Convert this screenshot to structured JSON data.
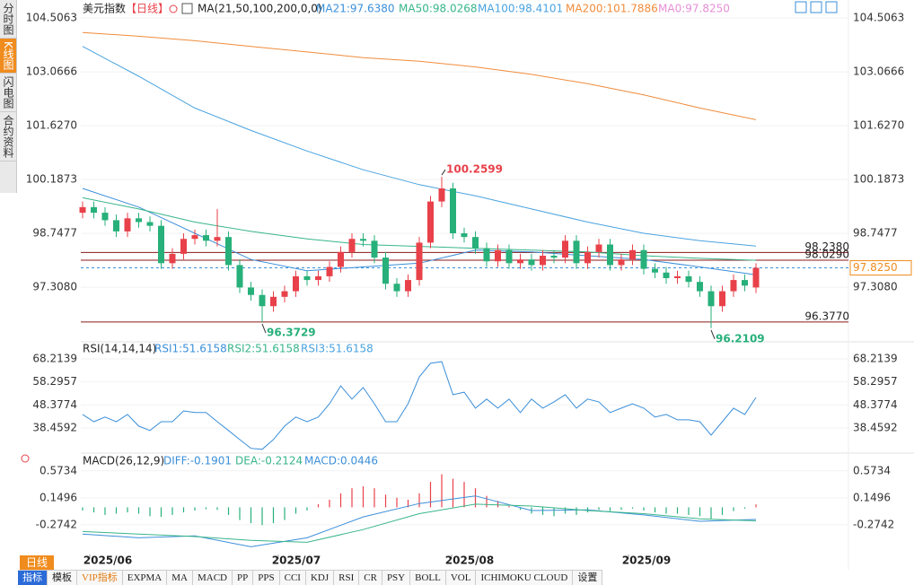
{
  "chart_data": [
    {
      "type": "candlestick",
      "title": "美元指数",
      "period": "【日线】",
      "indicator": "MA(21,50,100,200,0,0)",
      "up_color": "#e8414a",
      "down_color": "#27b07a",
      "open": [
        99.3,
        99.45,
        99.3,
        99.1,
        98.8,
        99.15,
        99.05,
        98.95,
        97.95,
        98.2,
        98.6,
        98.7,
        98.55,
        98.65,
        97.9,
        97.3,
        97.1,
        96.8,
        97.05,
        97.2,
        97.6,
        97.5,
        97.6,
        97.85,
        98.25,
        98.6,
        98.55,
        98.1,
        97.4,
        97.2,
        97.5,
        98.5,
        99.6,
        99.95,
        98.75,
        98.65,
        98.35,
        98.0,
        98.3,
        97.95,
        98.05,
        97.9,
        98.15,
        98.1,
        98.55,
        97.95,
        98.25,
        98.45,
        97.9,
        98.05,
        98.3,
        97.8,
        97.7,
        97.55,
        97.6,
        97.45,
        97.2,
        96.8,
        97.2,
        97.5,
        97.3
      ],
      "high": [
        99.6,
        99.6,
        99.45,
        99.25,
        99.3,
        99.3,
        99.2,
        99.1,
        98.35,
        98.75,
        98.85,
        98.85,
        99.4,
        98.8,
        98.05,
        97.45,
        97.25,
        97.2,
        97.35,
        97.75,
        97.75,
        97.75,
        98.0,
        98.4,
        98.75,
        98.75,
        98.7,
        98.25,
        97.55,
        97.65,
        98.65,
        99.75,
        100.2599,
        100.1,
        98.9,
        98.8,
        98.5,
        98.45,
        98.45,
        98.2,
        98.2,
        98.3,
        98.3,
        98.7,
        98.7,
        98.4,
        98.6,
        98.6,
        98.2,
        98.45,
        98.45,
        97.95,
        97.85,
        97.75,
        97.75,
        97.6,
        97.35,
        97.35,
        97.65,
        97.65,
        97.95
      ],
      "low": [
        99.15,
        99.15,
        98.95,
        98.65,
        98.65,
        98.9,
        98.8,
        97.8,
        97.8,
        98.05,
        98.45,
        98.4,
        98.4,
        97.75,
        97.15,
        96.95,
        96.3729,
        96.65,
        96.9,
        97.05,
        97.35,
        97.35,
        97.45,
        97.7,
        98.1,
        98.4,
        97.95,
        97.25,
        97.05,
        97.05,
        97.35,
        98.35,
        99.45,
        98.6,
        98.5,
        98.2,
        97.85,
        97.85,
        97.8,
        97.8,
        97.75,
        97.75,
        97.95,
        97.95,
        97.8,
        97.8,
        98.1,
        97.75,
        97.75,
        97.9,
        97.65,
        97.55,
        97.4,
        97.4,
        97.3,
        97.05,
        96.2109,
        96.65,
        97.05,
        97.2,
        97.15
      ],
      "close": [
        99.45,
        99.3,
        99.1,
        98.8,
        99.15,
        99.05,
        98.95,
        97.95,
        98.2,
        98.6,
        98.7,
        98.55,
        98.65,
        97.9,
        97.3,
        97.1,
        96.8,
        97.05,
        97.2,
        97.6,
        97.5,
        97.6,
        97.85,
        98.25,
        98.6,
        98.55,
        98.1,
        97.4,
        97.2,
        97.5,
        98.5,
        99.6,
        99.95,
        98.75,
        98.65,
        98.35,
        98.0,
        98.3,
        97.95,
        98.05,
        97.9,
        98.15,
        98.1,
        98.55,
        97.95,
        98.25,
        98.45,
        97.9,
        98.05,
        98.3,
        97.8,
        97.7,
        97.55,
        97.6,
        97.45,
        97.2,
        96.8,
        97.2,
        97.5,
        97.35,
        97.825
      ],
      "series": [
        {
          "name": "MA21:97.6380",
          "color": "#3b8fd9",
          "values": [
            99.95,
            99.45,
            98.75,
            98.05,
            97.75,
            97.85,
            97.95,
            98.3,
            98.25,
            98.15,
            98.05,
            97.85,
            97.638
          ]
        },
        {
          "name": "MA50:98.0268",
          "color": "#38b58a",
          "values": [
            99.7,
            99.4,
            99.05,
            98.8,
            98.6,
            98.45,
            98.4,
            98.35,
            98.3,
            98.25,
            98.15,
            98.08,
            98.0268
          ]
        },
        {
          "name": "MA100:98.4101",
          "color": "#4aa3df",
          "values": [
            103.75,
            102.95,
            102.1,
            101.5,
            100.95,
            100.45,
            100.05,
            99.75,
            99.4,
            99.05,
            98.75,
            98.55,
            98.4101
          ]
        },
        {
          "name": "MA200:101.7886",
          "color": "#f08c3c",
          "values": [
            104.12,
            104.02,
            103.9,
            103.75,
            103.6,
            103.45,
            103.35,
            103.2,
            103.0,
            102.75,
            102.45,
            102.1,
            101.7886
          ]
        }
      ],
      "price_line": {
        "name": "MA0:97.8250",
        "color": "#e58fd6",
        "line_color": "#3b8fd9",
        "box_color": "#f08c1e",
        "value": 97.825,
        "label": "97.8250"
      },
      "levels": [
        {
          "value": 98.238,
          "label": "98.2380"
        },
        {
          "value": 98.029,
          "label": "98.0290"
        },
        {
          "value": 96.377,
          "label": "96.3770"
        }
      ],
      "level_color": "#8b1a1a",
      "annotations": [
        {
          "value": 100.2599,
          "color": "#e8414a"
        },
        {
          "value": 96.3729,
          "color": "#27b07a"
        },
        {
          "value": 96.2109,
          "color": "#27b07a"
        }
      ],
      "ylim": [
        95.87,
        104.75
      ],
      "yticks": [
        104.5063,
        103.0666,
        {
          "value": 101.627,
          "label": "101.6270"
        },
        100.1873,
        98.7477,
        {
          "value": 97.308,
          "label": "97.3080"
        }
      ],
      "grid": true
    },
    {
      "type": "line",
      "title": "RSI(14,14,14)",
      "series": [
        {
          "name": "RSI1:51.6158",
          "color": "#3b8fd9",
          "values": [
            44.3,
            41.2,
            43.2,
            41.2,
            44.3,
            39.3,
            37.4,
            41.2,
            41.2,
            45.8,
            45.1,
            45.1,
            41.2,
            37.4,
            33.5,
            29.7,
            29.3,
            33.5,
            39.3,
            43.2,
            41.2,
            43.2,
            48.9,
            56.6,
            50.9,
            55.9,
            48.9,
            41.2,
            41.2,
            48.9,
            60.5,
            66.3,
            67.0,
            52.8,
            53.9,
            47.0,
            50.9,
            47.0,
            50.9,
            45.1,
            50.9,
            47.0,
            49.7,
            52.8,
            47.0,
            50.9,
            49.7,
            45.1,
            47.0,
            48.9,
            47.0,
            43.2,
            44.3,
            42.0,
            42.0,
            41.2,
            35.4,
            41.2,
            47.0,
            44.3,
            51.6158
          ]
        }
      ],
      "extra_legend": [
        {
          "name": "RSI2:51.6158",
          "color": "#38b58a"
        },
        {
          "name": "RSI3:51.6158",
          "color": "#4aa3df"
        }
      ],
      "ylim": [
        28.44,
        74.77
      ],
      "yticks": [
        68.2139,
        58.2957,
        48.3774,
        38.4592
      ],
      "grid": true
    },
    {
      "type": "macd",
      "title": "MACD(26,12,9)",
      "histogram": {
        "name": "MACD:0.0446",
        "color": "#3b8fd9",
        "up_color": "#e8414a",
        "down_color": "#27b07a",
        "values": [
          -0.05,
          -0.08,
          -0.12,
          -0.1,
          -0.08,
          -0.1,
          -0.14,
          -0.15,
          -0.12,
          -0.08,
          -0.05,
          -0.03,
          -0.04,
          -0.12,
          -0.2,
          -0.25,
          -0.28,
          -0.25,
          -0.2,
          -0.1,
          -0.05,
          0.05,
          0.12,
          0.22,
          0.3,
          0.33,
          0.3,
          0.2,
          0.15,
          0.12,
          0.22,
          0.4,
          0.52,
          0.45,
          0.4,
          0.3,
          0.18,
          0.1,
          0.02,
          -0.04,
          -0.1,
          -0.12,
          -0.14,
          -0.1,
          -0.12,
          -0.08,
          -0.04,
          -0.06,
          -0.04,
          -0.02,
          -0.05,
          -0.08,
          -0.1,
          -0.1,
          -0.12,
          -0.14,
          -0.18,
          -0.12,
          -0.06,
          -0.02,
          0.0446
        ]
      },
      "series": [
        {
          "name": "DIFF:-0.1901",
          "color": "#3b8fd9",
          "values": [
            -0.42,
            -0.48,
            -0.45,
            -0.62,
            -0.48,
            -0.15,
            0.06,
            0.18,
            -0.05,
            -0.04,
            -0.12,
            -0.22,
            -0.1901
          ]
        },
        {
          "name": "DEA:-0.2124",
          "color": "#38b58a",
          "values": [
            -0.38,
            -0.42,
            -0.46,
            -0.52,
            -0.55,
            -0.35,
            -0.1,
            0.05,
            0.02,
            -0.05,
            -0.1,
            -0.18,
            -0.2124
          ]
        }
      ],
      "ylim": [
        -0.77,
        0.81
      ],
      "yticks": [
        0.5734,
        0.1496,
        -0.2742
      ],
      "x_labels": [
        "2025/06",
        "2025/07",
        "2025/08",
        "2025/09"
      ],
      "grid": true
    }
  ],
  "ui": {
    "side_tabs": [
      "分时图",
      "K线图",
      "闪电图",
      "合约资料"
    ],
    "period_button": "日线",
    "toolbar": [
      "指标",
      "模板",
      "VIP指标",
      "EXPMA",
      "MA",
      "MACD",
      "PP",
      "PPS",
      "CCI",
      "KDJ",
      "RSI",
      "CR",
      "PSY",
      "BOLL",
      "VOL",
      "ICHIMOKU CLOUD",
      "设置"
    ]
  }
}
